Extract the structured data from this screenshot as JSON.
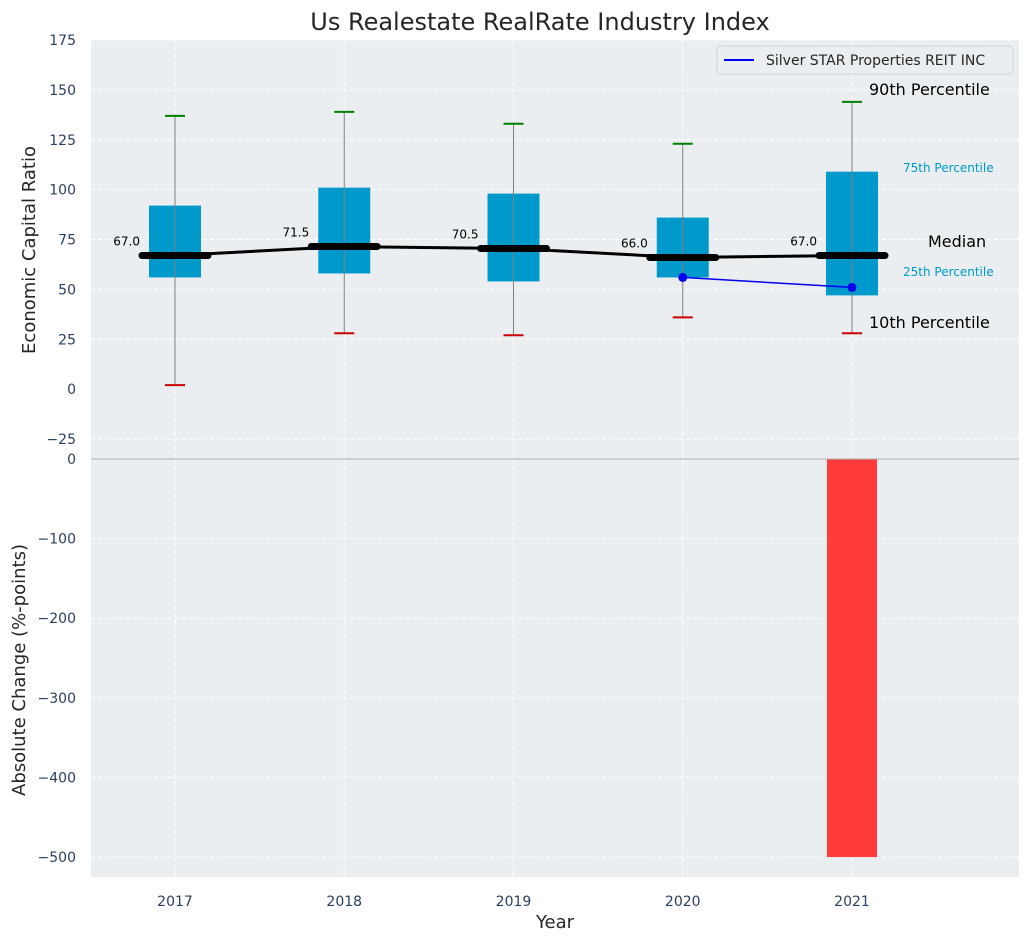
{
  "chart_data": [
    {
      "type": "box",
      "title": "Us Realestate RealRate Industry Index",
      "ylabel": "Economic Capital Ratio",
      "ylim": [
        -35,
        175
      ],
      "yticks": [
        175,
        150,
        125,
        100,
        75,
        50,
        25,
        0,
        -25
      ],
      "ytick_labels": [
        "175",
        "150",
        "125",
        "100",
        "75",
        "50",
        "25",
        "0",
        "−25"
      ],
      "categories": [
        "2017",
        "2018",
        "2019",
        "2020",
        "2021"
      ],
      "p10": [
        2,
        28,
        27,
        36,
        28
      ],
      "p25": [
        56,
        58,
        54,
        56,
        47
      ],
      "median": [
        67.0,
        71.5,
        70.5,
        66.0,
        67.0
      ],
      "median_labels": [
        "67.0",
        "71.5",
        "70.5",
        "66.0",
        "67.0"
      ],
      "p75": [
        92,
        101,
        98,
        86,
        109
      ],
      "p90": [
        137,
        139,
        133,
        123,
        144
      ],
      "company": {
        "name": "Silver STAR Properties REIT INC",
        "x": [
          "2020",
          "2021"
        ],
        "values": [
          56,
          51
        ]
      },
      "annotations": {
        "p90": "90th Percentile",
        "p75": "75th Percentile",
        "median": "Median",
        "p25": "25th Percentile",
        "p10": "10th Percentile"
      },
      "grid": true,
      "legend_position": "top-right"
    },
    {
      "type": "bar",
      "xlabel": "Year",
      "ylabel": "Absolute Change (%-points)",
      "ylim": [
        -525,
        0
      ],
      "yticks": [
        0,
        -100,
        -200,
        -300,
        -400,
        -500
      ],
      "ytick_labels": [
        "0",
        "−100",
        "−200",
        "−300",
        "−400",
        "−500"
      ],
      "categories": [
        "2017",
        "2018",
        "2019",
        "2020",
        "2021"
      ],
      "values": [
        null,
        null,
        null,
        null,
        -500
      ],
      "grid": true
    }
  ],
  "colors": {
    "background": "#eaeef0",
    "box": "#0099cc",
    "median": "#000000",
    "whisker": "#808080",
    "p90_cap": "#008000",
    "p10_cap": "#cc0000",
    "company": "#0000ee",
    "negative_bar": "#ff3b3b",
    "grid": "#ffffff"
  }
}
